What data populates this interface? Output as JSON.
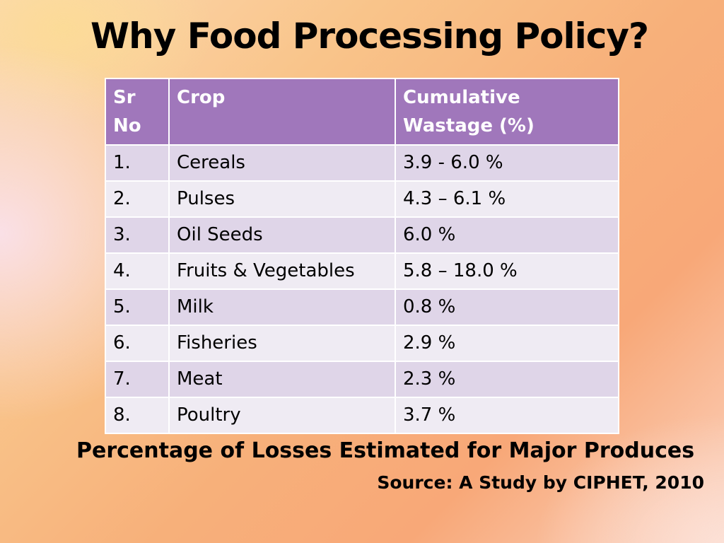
{
  "title": "Why Food Processing Policy?",
  "table": {
    "headers": [
      "Sr No",
      "Crop",
      "Cumulative Wastage (%)"
    ],
    "rows": [
      [
        "1.",
        "Cereals",
        "3.9 - 6.0 %"
      ],
      [
        "2.",
        "Pulses",
        "4.3 – 6.1 %"
      ],
      [
        "3.",
        "Oil Seeds",
        "6.0 %"
      ],
      [
        "4.",
        "Fruits & Vegetables",
        "5.8 – 18.0 %"
      ],
      [
        "5.",
        "Milk",
        "0.8 %"
      ],
      [
        "6.",
        "Fisheries",
        "2.9 %"
      ],
      [
        "7.",
        "Meat",
        "2.3 %"
      ],
      [
        "8.",
        "Poultry",
        "3.7 %"
      ]
    ]
  },
  "caption": "Percentage of Losses Estimated for Major Produces",
  "source": "Source: A Study by CIPHET, 2010",
  "colors": {
    "header": "#a077bb",
    "row_odd": "#dfd5e8",
    "row_even": "#efebf3"
  }
}
